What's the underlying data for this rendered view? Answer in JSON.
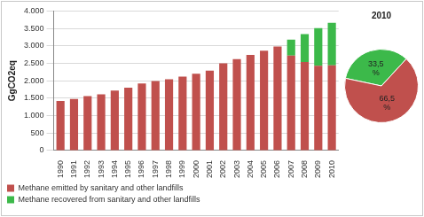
{
  "chart_data": [
    {
      "type": "bar",
      "stacked": true,
      "categories": [
        "1990",
        "1991",
        "1992",
        "1993",
        "1994",
        "1995",
        "1996",
        "1997",
        "1998",
        "1999",
        "2000",
        "2001",
        "2002",
        "2003",
        "2004",
        "2005",
        "2006",
        "2007",
        "2008",
        "2009",
        "2010"
      ],
      "series": [
        {
          "name": "Methane emitted by sanitary and other landfills",
          "color": "#c0504d",
          "values": [
            1420,
            1480,
            1560,
            1610,
            1720,
            1800,
            1920,
            1990,
            2040,
            2120,
            2200,
            2290,
            2500,
            2620,
            2740,
            2860,
            2980,
            2720,
            2540,
            2430,
            2440
          ]
        },
        {
          "name": "Methane recovered from sanitary and other landfills",
          "color": "#3cb94a",
          "values": [
            0,
            0,
            0,
            0,
            0,
            0,
            0,
            0,
            0,
            0,
            0,
            0,
            0,
            0,
            0,
            0,
            0,
            460,
            800,
            1080,
            1220
          ]
        }
      ],
      "y_label": "GgCO2eq",
      "ylim": [
        0,
        4000
      ],
      "yticks": [
        0,
        500,
        {
          "value": 1000,
          "label": "1.000"
        },
        {
          "value": 1500,
          "label": "1.500"
        },
        {
          "value": 2000,
          "label": "2.000"
        },
        {
          "value": 2500,
          "label": "2.500"
        },
        {
          "value": 3000,
          "label": "3.000"
        },
        {
          "value": 3500,
          "label": "3.500"
        },
        {
          "value": 4000,
          "label": "4.000"
        }
      ],
      "grid": true,
      "legend": "bottom"
    },
    {
      "type": "pie",
      "title": "2010",
      "values": [
        33.5,
        66.5
      ],
      "value_labels": [
        "33,5 %",
        "66,5 %"
      ],
      "colors": [
        "#3cb94a",
        "#c0504d"
      ],
      "data_labels": true
    }
  ]
}
